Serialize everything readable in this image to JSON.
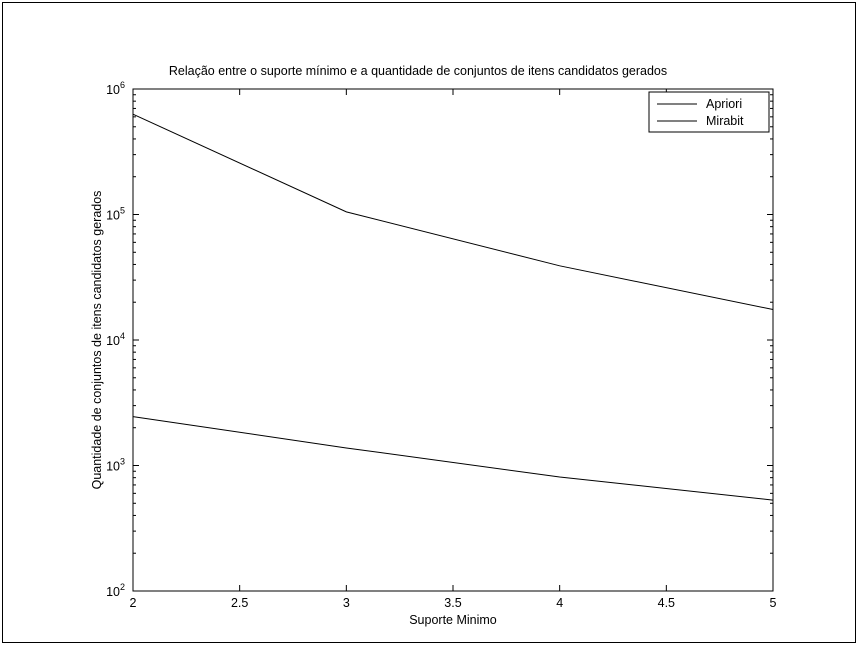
{
  "chart_data": {
    "type": "line",
    "title": "Relação entre o suporte mínimo e a quantidade de conjuntos de itens candidatos gerados",
    "xlabel": "Suporte Minimo",
    "ylabel": "Quantidade de conjuntos de itens candidatos gerados",
    "x": [
      2,
      3,
      4,
      5
    ],
    "xlim": [
      2,
      5
    ],
    "ylim": [
      100,
      1000000
    ],
    "yscale": "log",
    "xticks": [
      "2",
      "2.5",
      "3",
      "3.5",
      "4",
      "4.5",
      "5"
    ],
    "yticks": [
      {
        "base": "10",
        "exp": "2"
      },
      {
        "base": "10",
        "exp": "3"
      },
      {
        "base": "10",
        "exp": "4"
      },
      {
        "base": "10",
        "exp": "5"
      },
      {
        "base": "10",
        "exp": "6"
      }
    ],
    "grid": false,
    "legend_position": "top-right",
    "series": [
      {
        "name": "Apriori",
        "values": [
          630000,
          105000,
          39000,
          17500
        ],
        "color": "#000000"
      },
      {
        "name": "Mirabit",
        "values": [
          2450,
          1380,
          810,
          530
        ],
        "color": "#000000"
      }
    ]
  }
}
